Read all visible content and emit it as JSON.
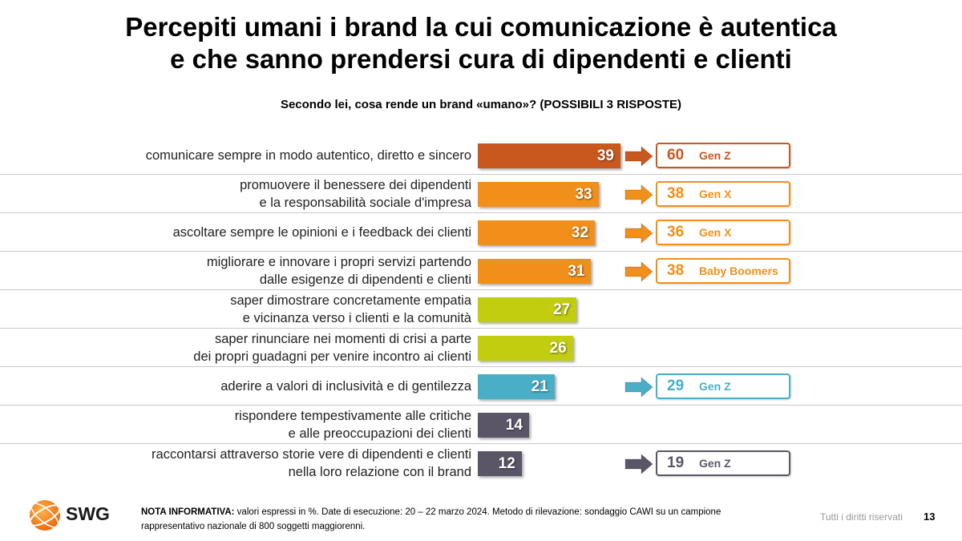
{
  "title_lines": [
    "Percepiti umani i brand la cui comunicazione è autentica",
    "e che sanno prendersi cura di dipendenti e clienti"
  ],
  "subtitle": "Secondo lei, cosa rende un brand «umano»? (POSSIBILI 3 RISPOSTE)",
  "chart_data": {
    "type": "bar",
    "orientation": "horizontal",
    "title": "Secondo lei, cosa rende un brand «umano»? (POSSIBILI 3 RISPOSTE)",
    "unit": "%",
    "xlim": [
      0,
      100
    ],
    "categories": [
      [
        "comunicare sempre in modo autentico, diretto e sincero"
      ],
      [
        "promuovere il benessere dei dipendenti",
        "e la responsabilità sociale d'impresa"
      ],
      [
        "ascoltare sempre le opinioni e i feedback dei clienti"
      ],
      [
        "migliorare e innovare i propri servizi partendo",
        "dalle esigenze di dipendenti e clienti"
      ],
      [
        "saper dimostrare concretamente empatia",
        "e vicinanza verso i clienti e la comunità"
      ],
      [
        "saper rinunciare nei momenti di crisi a parte",
        "dei propri guadagni per venire incontro ai clienti"
      ],
      [
        "aderire a valori di inclusività e di gentilezza"
      ],
      [
        "rispondere tempestivamente alle critiche",
        "e alle preoccupazioni dei clienti"
      ],
      [
        "raccontarsi attraverso storie vere di dipendenti e clienti",
        "nella loro relazione con il brand"
      ]
    ],
    "values": [
      39,
      33,
      32,
      31,
      27,
      26,
      21,
      14,
      12
    ],
    "bar_colors": [
      "#c8581e",
      "#f0901a",
      "#f0901a",
      "#f0901a",
      "#c3cd10",
      "#c3cd10",
      "#4aaec6",
      "#5b5568",
      "#5b5568"
    ],
    "callouts": [
      {
        "row": 0,
        "value": 60,
        "group": "Gen Z",
        "color": "#c8581e"
      },
      {
        "row": 1,
        "value": 38,
        "group": "Gen X",
        "color": "#f0901a"
      },
      {
        "row": 2,
        "value": 36,
        "group": "Gen X",
        "color": "#f0901a"
      },
      {
        "row": 3,
        "value": 38,
        "group": "Baby Boomers",
        "color": "#f0901a"
      },
      {
        "row": 6,
        "value": 29,
        "group": "Gen Z",
        "color": "#4aaec6"
      },
      {
        "row": 8,
        "value": 19,
        "group": "Gen Z",
        "color": "#5b5568"
      }
    ]
  },
  "logo": {
    "text": "SWG",
    "color": "#f07d1a"
  },
  "footer": {
    "note_label": "NOTA INFORMATIVA:",
    "note_line1": " valori espressi in %. Date di esecuzione: 20 – 22 marzo 2024. Metodo di rilevazione: sondaggio CAWI su un campione",
    "note_line2": "rappresentativo nazionale di 800 soggetti maggiorenni.",
    "rights": "Tutti i diritti riservati",
    "page_number": "13"
  }
}
